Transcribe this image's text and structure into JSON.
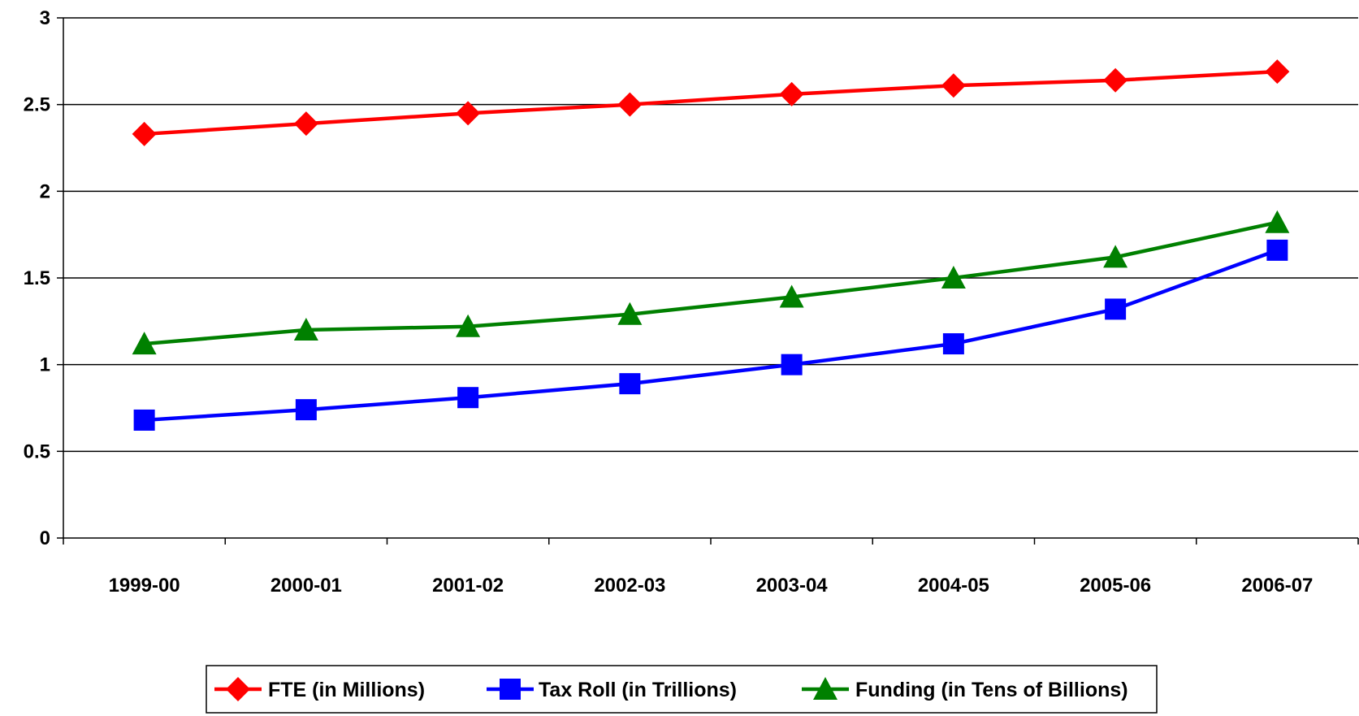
{
  "chart_data": {
    "type": "line",
    "title": "",
    "xlabel": "",
    "ylabel": "",
    "categories": [
      "1999-00",
      "2000-01",
      "2001-02",
      "2002-03",
      "2003-04",
      "2004-05",
      "2005-06",
      "2006-07"
    ],
    "ylim": [
      0,
      3
    ],
    "yticks": [
      0,
      0.5,
      1,
      1.5,
      2,
      2.5,
      3
    ],
    "ytick_labels": [
      "0",
      "0.5",
      "1",
      "1.5",
      "2",
      "2.5",
      "3"
    ],
    "grid": true,
    "legend_position": "bottom",
    "series": [
      {
        "name": "FTE (in Millions)",
        "color": "#ff0000",
        "marker": "diamond",
        "values": [
          2.33,
          2.39,
          2.45,
          2.5,
          2.56,
          2.61,
          2.64,
          2.69
        ]
      },
      {
        "name": "Tax Roll (in Trillions)",
        "color": "#0000ff",
        "marker": "square",
        "values": [
          0.68,
          0.74,
          0.81,
          0.89,
          1.0,
          1.12,
          1.32,
          1.66
        ]
      },
      {
        "name": "Funding (in Tens of Billions)",
        "color": "#008000",
        "marker": "triangle",
        "values": [
          1.12,
          1.2,
          1.22,
          1.29,
          1.39,
          1.5,
          1.62,
          1.82
        ]
      }
    ]
  }
}
